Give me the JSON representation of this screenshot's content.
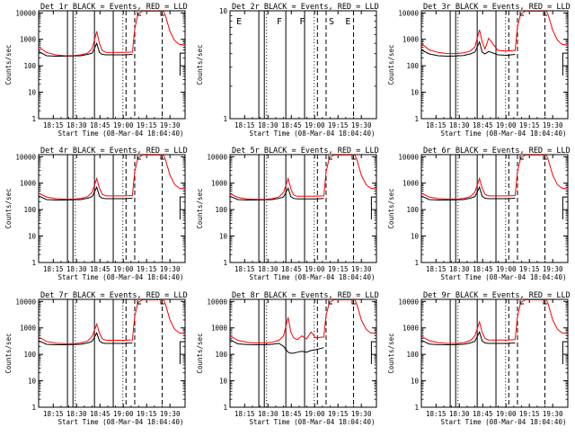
{
  "figure": {
    "xlabel": "Start Time (08-Mar-04 18:04:40)",
    "ylabel": "Counts/sec",
    "xtick_labels": [
      "18:15",
      "18:30",
      "18:45",
      "19:00",
      "19:15",
      "19:30"
    ],
    "ytick_labels": [
      "1",
      "10",
      "100",
      "1000",
      "10000"
    ],
    "colors": {
      "events": "#000000",
      "lld": "#ff0000",
      "background": "#ffffff"
    },
    "flag_labels": [
      "E",
      "F",
      "F",
      "S",
      "E"
    ]
  },
  "chart_data": [
    {
      "type": "line",
      "title": "Det 1r BLACK = Events, RED = LLD",
      "xlabel": "Start Time (08-Mar-04 18:04:40)",
      "ylabel": "Counts/sec",
      "xlim": [
        4.3,
        36.3
      ],
      "ylim": [
        1,
        12000
      ],
      "yscale": "log",
      "x": [
        4.3,
        6,
        8,
        10,
        12,
        13.5,
        15,
        16,
        17,
        17.6,
        18.2,
        19,
        21,
        23,
        24.8,
        25.3,
        26,
        27,
        28,
        29,
        30,
        31,
        31.6,
        32,
        33,
        34,
        35,
        36.3
      ],
      "series": [
        {
          "values": [
            520,
            320,
            260,
            240,
            245,
            260,
            300,
            450,
            2000,
            700,
            380,
            320,
            320,
            320,
            330,
            2500,
            9000,
            11500,
            11500,
            11500,
            11500,
            11500,
            11500,
            8000,
            2000,
            900,
            650,
            600
          ]
        },
        {
          "values": [
            350,
            240,
            230,
            230,
            235,
            240,
            270,
            300,
            700,
            320,
            270,
            260,
            260,
            260,
            270,
            null,
            null,
            null,
            null,
            null,
            null,
            null,
            null,
            null,
            null,
            null,
            null,
            null
          ]
        }
      ],
      "solid_vlines": [
        10.6,
        11.8,
        16.5,
        20.6
      ],
      "dashed_vlines": [
        23.4,
        25.3,
        31.3
      ],
      "dotted_vlines": [
        12.3,
        22.7
      ],
      "flags": []
    },
    {
      "type": "line",
      "title": "Det 2r BLACK = Events, RED = LLD",
      "xlabel": "Start Time (08-Mar-04 18:04:40)",
      "ylabel": "Counts/sec",
      "xlim": [
        4.3,
        36.3
      ],
      "ylim": [
        1,
        10
      ],
      "yscale": "log",
      "ytick_labels": [
        "1",
        "10"
      ],
      "x": [],
      "series": [],
      "solid_vlines": [
        10.6,
        11.8,
        16.5,
        20.6
      ],
      "dashed_vlines": [
        23.4,
        25.3,
        31.3
      ],
      "dotted_vlines": [
        12.3,
        22.7
      ],
      "flags": [
        "E",
        "F",
        "F",
        "S",
        "E"
      ]
    },
    {
      "type": "line",
      "title": "Det 3r BLACK = Events, RED = LLD",
      "xlabel": "Start Time (08-Mar-04 18:04:40)",
      "ylabel": "Counts/sec",
      "xlim": [
        4.3,
        36.3
      ],
      "ylim": [
        1,
        12000
      ],
      "yscale": "log",
      "x": [
        4.3,
        6,
        8,
        10,
        12,
        13.5,
        15,
        16,
        17,
        17.6,
        18.2,
        19,
        21,
        23,
        24.8,
        25.3,
        26,
        27,
        28,
        29,
        30,
        31,
        31.6,
        32,
        33,
        34,
        35,
        36.3
      ],
      "series": [
        {
          "values": [
            700,
            400,
            320,
            290,
            290,
            310,
            360,
            520,
            2300,
            800,
            430,
            1100,
            380,
            360,
            380,
            3000,
            9000,
            11500,
            11500,
            11500,
            11500,
            11500,
            11500,
            8500,
            2200,
            950,
            650,
            600
          ]
        },
        {
          "values": [
            400,
            280,
            240,
            230,
            235,
            245,
            280,
            330,
            800,
            330,
            280,
            350,
            260,
            250,
            270,
            null,
            null,
            null,
            null,
            null,
            null,
            null,
            null,
            null,
            null,
            null,
            null,
            null
          ]
        }
      ],
      "solid_vlines": [
        10.6,
        11.8,
        16.5,
        20.6
      ],
      "dashed_vlines": [
        23.4,
        25.3,
        31.3
      ],
      "dotted_vlines": [
        12.3,
        22.7
      ],
      "flags": []
    },
    {
      "type": "line",
      "title": "Det 4r BLACK = Events, RED = LLD",
      "xlabel": "Start Time (08-Mar-04 18:04:40)",
      "ylabel": "Counts/sec",
      "xlim": [
        4.3,
        36.3
      ],
      "ylim": [
        1,
        12000
      ],
      "yscale": "log",
      "x": [
        4.3,
        6,
        8,
        10,
        12,
        13.5,
        15,
        16,
        17,
        17.6,
        18.2,
        19,
        21,
        23,
        24.8,
        25.3,
        26,
        27,
        28,
        29,
        30,
        31,
        31.6,
        32,
        33,
        34,
        35,
        36.3
      ],
      "series": [
        {
          "values": [
            420,
            300,
            260,
            250,
            250,
            265,
            310,
            460,
            1500,
            650,
            380,
            330,
            330,
            330,
            340,
            2800,
            9000,
            11500,
            11500,
            11500,
            11500,
            11500,
            11500,
            8000,
            2000,
            900,
            650,
            600
          ]
        },
        {
          "values": [
            330,
            240,
            230,
            230,
            235,
            240,
            270,
            310,
            700,
            320,
            270,
            260,
            260,
            260,
            270,
            null,
            null,
            null,
            null,
            null,
            null,
            null,
            null,
            null,
            null,
            null,
            null,
            null
          ]
        }
      ],
      "solid_vlines": [
        10.6,
        11.8,
        16.5,
        20.6
      ],
      "dashed_vlines": [
        23.4,
        25.3,
        31.3
      ],
      "dotted_vlines": [
        12.3,
        22.7
      ],
      "flags": []
    },
    {
      "type": "line",
      "title": "Det 5r BLACK = Events, RED = LLD",
      "xlabel": "Start Time (08-Mar-04 18:04:40)",
      "ylabel": "Counts/sec",
      "xlim": [
        4.3,
        36.3
      ],
      "ylim": [
        1,
        12000
      ],
      "yscale": "log",
      "x": [
        4.3,
        6,
        8,
        10,
        12,
        13.5,
        15,
        16,
        17,
        17.6,
        18.2,
        19,
        21,
        23,
        24.8,
        25.3,
        26,
        27,
        28,
        29,
        30,
        31,
        31.6,
        32,
        33,
        34,
        35,
        36.3
      ],
      "series": [
        {
          "values": [
            400,
            290,
            255,
            245,
            245,
            260,
            300,
            450,
            1500,
            620,
            360,
            320,
            320,
            320,
            330,
            2700,
            9000,
            11500,
            11500,
            11500,
            11500,
            11500,
            11500,
            8000,
            2000,
            900,
            650,
            600
          ]
        },
        {
          "values": [
            320,
            240,
            230,
            230,
            235,
            240,
            265,
            300,
            650,
            310,
            265,
            255,
            255,
            255,
            265,
            null,
            null,
            null,
            null,
            null,
            null,
            null,
            null,
            null,
            null,
            null,
            null,
            null
          ]
        }
      ],
      "solid_vlines": [
        10.6,
        11.8,
        16.5,
        20.6
      ],
      "dashed_vlines": [
        23.4,
        25.3,
        31.3
      ],
      "dotted_vlines": [
        12.3,
        22.7
      ],
      "flags": []
    },
    {
      "type": "line",
      "title": "Det 6r BLACK = Events, RED = LLD",
      "xlabel": "Start Time (08-Mar-04 18:04:40)",
      "ylabel": "Counts/sec",
      "xlim": [
        4.3,
        36.3
      ],
      "ylim": [
        1,
        12000
      ],
      "yscale": "log",
      "x": [
        4.3,
        6,
        8,
        10,
        12,
        13.5,
        15,
        16,
        17,
        17.6,
        18.2,
        19,
        21,
        23,
        24.8,
        25.3,
        26,
        27,
        28,
        29,
        30,
        31,
        31.6,
        32,
        33,
        34,
        35,
        36.3
      ],
      "series": [
        {
          "values": [
            420,
            300,
            260,
            250,
            250,
            265,
            310,
            460,
            1500,
            650,
            380,
            330,
            330,
            330,
            340,
            2800,
            9000,
            11500,
            11500,
            11500,
            11500,
            11500,
            11500,
            8000,
            2000,
            900,
            650,
            600
          ]
        },
        {
          "values": [
            330,
            240,
            230,
            230,
            235,
            240,
            270,
            310,
            700,
            320,
            270,
            260,
            260,
            260,
            270,
            null,
            null,
            null,
            null,
            null,
            null,
            null,
            null,
            null,
            null,
            null,
            null,
            null
          ]
        }
      ],
      "solid_vlines": [
        10.6,
        11.8,
        16.5,
        20.6
      ],
      "dashed_vlines": [
        23.4,
        25.3,
        31.3
      ],
      "dotted_vlines": [
        12.3,
        22.7
      ],
      "flags": []
    },
    {
      "type": "line",
      "title": "Det 7r BLACK = Events, RED = LLD",
      "xlabel": "Start Time (08-Mar-04 18:04:40)",
      "ylabel": "Counts/sec",
      "xlim": [
        4.3,
        36.3
      ],
      "ylim": [
        1,
        12000
      ],
      "yscale": "log",
      "x": [
        4.3,
        6,
        8,
        10,
        12,
        13.5,
        15,
        16,
        17,
        17.6,
        18.2,
        19,
        21,
        23,
        24.8,
        25.3,
        26,
        27,
        28,
        29,
        30,
        31,
        31.6,
        32,
        33,
        34,
        35,
        36.3
      ],
      "series": [
        {
          "values": [
            450,
            310,
            265,
            255,
            255,
            270,
            320,
            480,
            1400,
            640,
            390,
            340,
            340,
            340,
            350,
            2800,
            9000,
            11500,
            11500,
            11500,
            11500,
            11500,
            11500,
            8000,
            2000,
            900,
            650,
            600
          ]
        },
        {
          "values": [
            330,
            240,
            230,
            230,
            235,
            240,
            270,
            310,
            650,
            320,
            270,
            260,
            260,
            260,
            270,
            null,
            null,
            null,
            null,
            null,
            null,
            null,
            null,
            null,
            null,
            null,
            null,
            null
          ]
        }
      ],
      "solid_vlines": [
        10.6,
        11.8,
        16.5,
        20.6
      ],
      "dashed_vlines": [
        23.4,
        25.3,
        31.3
      ],
      "dotted_vlines": [
        12.3,
        22.7
      ],
      "flags": []
    },
    {
      "type": "line",
      "title": "Det 8r BLACK = Events, RED = LLD",
      "xlabel": "Start Time (08-Mar-04 18:04:40)",
      "ylabel": "Counts/sec",
      "xlim": [
        4.3,
        36.3
      ],
      "ylim": [
        1,
        12000
      ],
      "yscale": "log",
      "x": [
        4.3,
        6,
        8,
        10,
        12,
        13.5,
        15,
        16,
        17,
        17.6,
        18.2,
        19,
        20,
        21,
        22,
        23,
        24.8,
        25.3,
        26,
        27,
        28,
        29,
        30,
        31,
        31.6,
        32,
        33,
        34,
        35,
        36.3
      ],
      "series": [
        {
          "values": [
            500,
            340,
            285,
            270,
            270,
            285,
            340,
            500,
            2500,
            700,
            420,
            360,
            500,
            380,
            700,
            420,
            450,
            3000,
            9000,
            11500,
            11500,
            11500,
            11500,
            11500,
            11500,
            8000,
            2000,
            900,
            650,
            600
          ]
        },
        {
          "values": [
            360,
            250,
            235,
            230,
            230,
            240,
            260,
            200,
            120,
            110,
            110,
            120,
            130,
            120,
            140,
            150,
            180,
            null,
            null,
            null,
            null,
            null,
            null,
            null,
            null,
            null,
            null,
            null,
            null,
            null
          ]
        }
      ],
      "solid_vlines": [
        10.6,
        11.8,
        16.5,
        20.6
      ],
      "dashed_vlines": [
        23.4,
        25.3,
        31.3
      ],
      "dotted_vlines": [
        12.3,
        22.7
      ],
      "flags": []
    },
    {
      "type": "line",
      "title": "Det 9r BLACK = Events, RED = LLD",
      "xlabel": "Start Time (08-Mar-04 18:04:40)",
      "ylabel": "Counts/sec",
      "xlim": [
        4.3,
        36.3
      ],
      "ylim": [
        1,
        12000
      ],
      "yscale": "log",
      "x": [
        4.3,
        6,
        8,
        10,
        12,
        13.5,
        15,
        16,
        17,
        17.6,
        18.2,
        19,
        21,
        23,
        24.8,
        25.3,
        26,
        27,
        28,
        29,
        30,
        31,
        31.6,
        32,
        33,
        34,
        35,
        36.3
      ],
      "series": [
        {
          "values": [
            480,
            330,
            275,
            260,
            260,
            275,
            330,
            500,
            1700,
            680,
            400,
            350,
            350,
            350,
            360,
            2800,
            9000,
            11500,
            11500,
            11500,
            11500,
            11500,
            11500,
            8000,
            2000,
            900,
            650,
            600
          ]
        },
        {
          "values": [
            340,
            245,
            232,
            230,
            233,
            240,
            270,
            310,
            700,
            320,
            270,
            260,
            260,
            260,
            270,
            null,
            null,
            null,
            null,
            null,
            null,
            null,
            null,
            null,
            null,
            null,
            null,
            null
          ]
        }
      ],
      "solid_vlines": [
        10.6,
        11.8,
        16.5,
        20.6
      ],
      "dashed_vlines": [
        23.4,
        25.3,
        31.3
      ],
      "dotted_vlines": [
        12.3,
        22.7
      ],
      "flags": []
    }
  ]
}
